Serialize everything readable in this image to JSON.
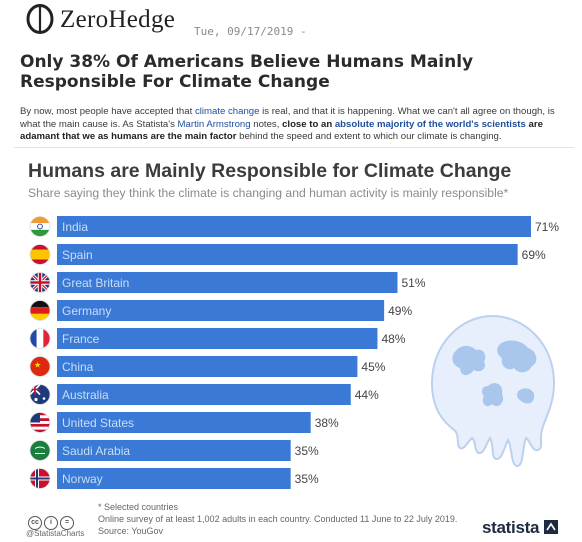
{
  "site": {
    "logo_text": "ZeroHedge",
    "post_date": "Tue, 09/17/2019 -"
  },
  "article": {
    "title": "Only 38% Of Americans Believe Humans Mainly Responsible For Climate Change",
    "intro": {
      "p1": "By now, most people have accepted that ",
      "link1": "climate change",
      "p2": " is real, and that it is happening. What we can't all agree on though, is what the main cause is. As Statista's ",
      "link2": "Martin Armstrong",
      "p3": " notes, ",
      "b1": "close to an ",
      "link3": "absolute majority of the world's scientists",
      "b2": " are adamant that we as humans are the main factor",
      "p4": " behind the speed and extent to which our climate is changing."
    }
  },
  "chart_data": {
    "type": "bar",
    "orientation": "horizontal",
    "title": "Humans are Mainly Responsible for Climate Change",
    "subtitle": "Share saying they think the climate is changing and human activity is mainly responsible*",
    "categories": [
      "India",
      "Spain",
      "Great Britain",
      "Germany",
      "France",
      "China",
      "Australia",
      "United States",
      "Saudi Arabia",
      "Norway"
    ],
    "values": [
      71,
      69,
      51,
      49,
      48,
      45,
      44,
      38,
      35,
      35
    ],
    "value_suffix": "%",
    "bar_color": "#3a7ad6",
    "label_color": "#c9ddf6",
    "flags": [
      "flag-india-icon",
      "flag-spain-icon",
      "flag-great-britain-icon",
      "flag-germany-icon",
      "flag-france-icon",
      "flag-china-icon",
      "flag-australia-icon",
      "flag-united-states-icon",
      "flag-saudi-arabia-icon",
      "flag-norway-icon"
    ],
    "decoration": "melting-globe-icon",
    "xlim": [
      0,
      71
    ]
  },
  "chart_footer": {
    "note1": "* Selected countries",
    "note2": "Online survey of at least 1,002 adults in each country. Conducted 11 June to 22 July 2019.",
    "source": "Source: YouGov",
    "handle": "@StatistaCharts",
    "brand": "statista",
    "license_icons": [
      "cc",
      "i",
      "="
    ]
  }
}
